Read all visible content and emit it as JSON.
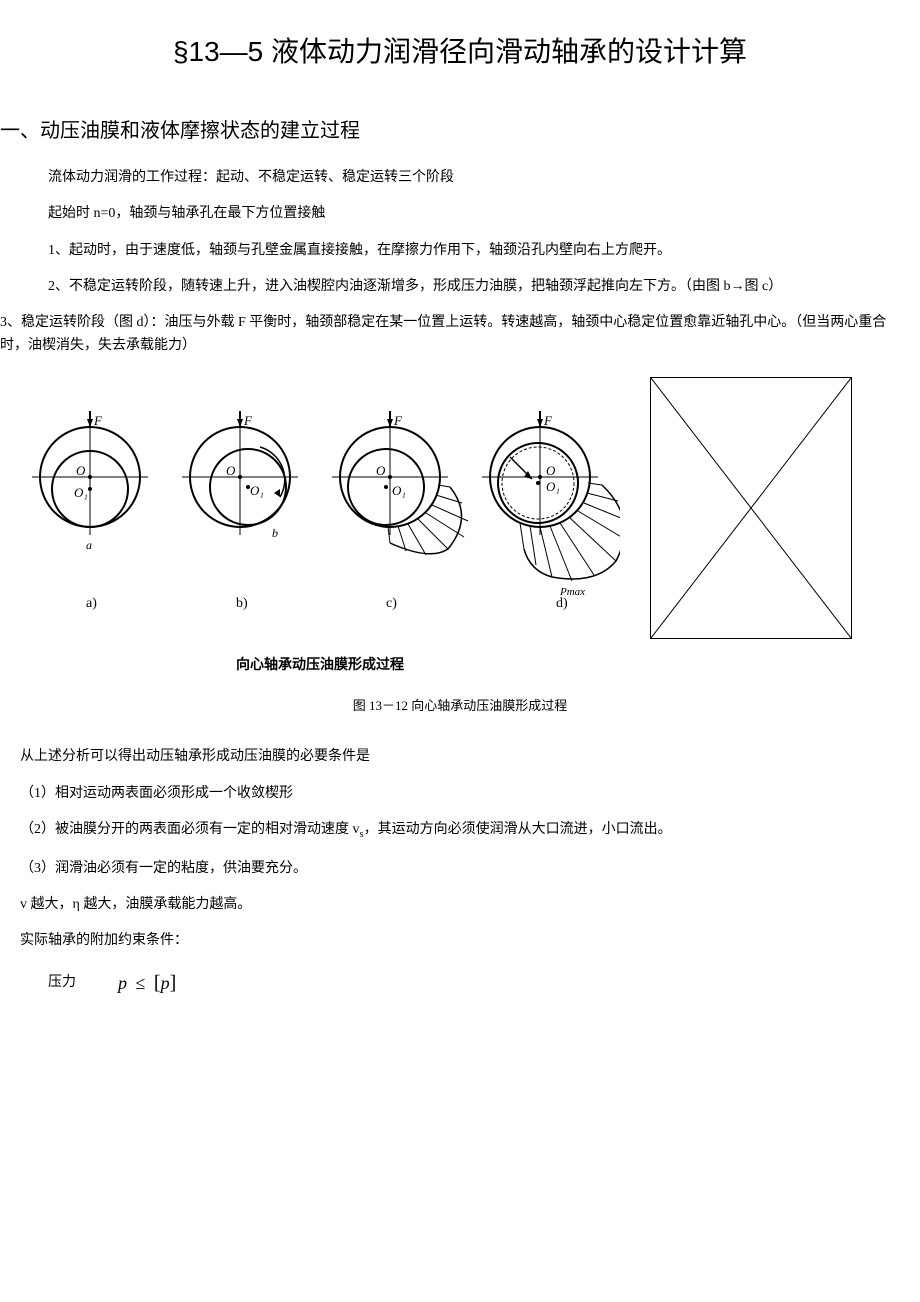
{
  "title": "§13—5 液体动力润滑径向滑动轴承的设计计算",
  "section1": {
    "heading": "一、动压油膜和液体摩擦状态的建立过程",
    "p1": "流体动力润滑的工作过程：起动、不稳定运转、稳定运转三个阶段",
    "p2": "起始时 n=0，轴颈与轴承孔在最下方位置接触",
    "p3": "1、起动时，由于速度低，轴颈与孔壁金属直接接触，在摩擦力作用下，轴颈沿孔内壁向右上方爬开。",
    "p4": "2、不稳定运转阶段，随转速上升，进入油楔腔内油逐渐增多，形成压力油膜，把轴颈浮起推向左下方。（由图 b→图 c）",
    "p5": "3、稳定运转阶段（图 d）：油压与外载 F 平衡时，轴颈部稳定在某一位置上运转。转速越高，轴颈中心稳定位置愈靠近轴孔中心。（但当两心重合时，油楔消失，失去承载能力）"
  },
  "figure": {
    "labels": {
      "a": "a)",
      "b": "b)",
      "c": "c)",
      "d": "d)"
    },
    "embedded_caption": "向心轴承动压油膜形成过程",
    "caption": "图 13－12 向心轴承动压油膜形成过程",
    "left_width": 600,
    "left_height": 270,
    "xbox_width": 200,
    "xbox_height": 260,
    "stroke": "#000000",
    "fill": "#ffffff"
  },
  "conditions": {
    "intro": "从上述分析可以得出动压轴承形成动压油膜的必要条件是",
    "c1": "（1）相对运动两表面必须形成一个收敛楔形",
    "c2_pre": "（2）被油膜分开的两表面必须有一定的相对滑动速度 v",
    "c2_sub": "s",
    "c2_post": "，其运动方向必须使润滑从大口流进，小口流出。",
    "c3": "（3）润滑油必须有一定的粘度，供油要充分。",
    "note": "v 越大，η 越大，油膜承载能力越高。",
    "constraints_heading": "实际轴承的附加约束条件：",
    "pressure_label": "压力",
    "pressure_var": "p",
    "pressure_op": "≤",
    "pressure_rhs": "p"
  }
}
